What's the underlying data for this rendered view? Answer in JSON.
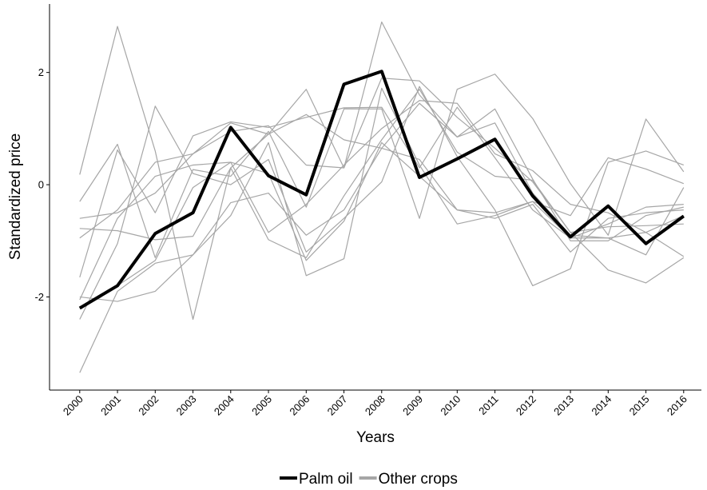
{
  "chart_data": {
    "type": "line",
    "x_label": "Years",
    "y_label": "Standardized price",
    "x": [
      2000,
      2001,
      2002,
      2003,
      2004,
      2005,
      2006,
      2007,
      2008,
      2009,
      2010,
      2011,
      2012,
      2013,
      2014,
      2015,
      2016
    ],
    "xlim": [
      1999.2,
      2016.47
    ],
    "xticks": [
      2000,
      2001,
      2002,
      2003,
      2004,
      2005,
      2006,
      2007,
      2008,
      2009,
      2010,
      2011,
      2012,
      2013,
      2014,
      2015,
      2016
    ],
    "ylim": [
      -3.66,
      3.22
    ],
    "yticks": [
      -2,
      0,
      2
    ],
    "legend": "bottom",
    "series": [
      {
        "name": "Palm oil",
        "color": "#000000",
        "values": [
          -2.2,
          -1.8,
          -0.87,
          -0.5,
          1.02,
          0.16,
          -0.18,
          1.79,
          2.02,
          0.13,
          0.46,
          0.81,
          -0.2,
          -0.93,
          -0.38,
          -1.05,
          -0.56
        ]
      },
      {
        "name": "Other crops",
        "color": "#a6a6a6",
        "values": [
          [
            0.18,
            2.82,
            0.6,
            -2.4,
            0.3,
            0.9,
            1.7,
            0.3,
            2.9,
            1.6,
            0.85,
            1.1,
            -0.15,
            -0.9,
            -0.95,
            -0.85,
            -0.55
          ],
          [
            -0.3,
            0.72,
            -1.3,
            0.27,
            0.15,
            0.95,
            -0.4,
            1.35,
            1.35,
            -0.6,
            1.7,
            1.97,
            1.18,
            0.02,
            -0.9,
            1.17,
            0.23
          ],
          [
            -3.35,
            -1.9,
            -1.4,
            -1.25,
            -0.55,
            0.75,
            -1.62,
            -1.32,
            1.72,
            0.35,
            -0.7,
            -0.55,
            -0.3,
            -0.55,
            0.48,
            0.28,
            0.02
          ],
          [
            -2.4,
            -1.05,
            1.4,
            0.2,
            0.0,
            0.45,
            -1.2,
            -0.6,
            0.05,
            1.75,
            0.5,
            -0.45,
            -1.8,
            -1.5,
            0.4,
            0.6,
            0.35
          ],
          [
            -0.6,
            -0.5,
            -0.15,
            0.55,
            1.1,
            0.9,
            1.25,
            0.8,
            0.65,
            0.45,
            -0.45,
            -0.6,
            -0.35,
            -1.2,
            -0.6,
            -0.5,
            -0.45
          ],
          [
            -0.95,
            -0.45,
            0.4,
            0.55,
            0.95,
            1.05,
            0.35,
            0.3,
            1.9,
            1.85,
            1.2,
            0.65,
            0.05,
            -0.85,
            -1.52,
            -1.75,
            -1.3
          ],
          [
            -1.65,
            0.62,
            -0.5,
            0.87,
            1.12,
            1.02,
            1.2,
            1.37,
            1.38,
            0.3,
            1.38,
            0.48,
            -0.45,
            -0.95,
            -0.95,
            -1.25,
            -0.05
          ],
          [
            -2.0,
            -2.08,
            -1.9,
            -1.25,
            -0.32,
            -0.15,
            -0.9,
            -0.45,
            0.65,
            1.45,
            0.85,
            1.35,
            0.1,
            -1.0,
            -1.0,
            -0.55,
            -0.4
          ],
          [
            -0.78,
            -0.82,
            -0.98,
            -0.92,
            0.3,
            -0.98,
            -1.3,
            -0.2,
            0.8,
            1.7,
            0.58,
            0.15,
            0.08,
            -0.85,
            -0.75,
            -0.73,
            -0.7
          ],
          [
            -2.2,
            -1.8,
            -1.35,
            -0.05,
            0.4,
            0.2,
            -1.35,
            -0.65,
            0.75,
            0.15,
            -0.45,
            -0.5,
            -0.3,
            -0.95,
            -0.7,
            -0.4,
            -0.35
          ],
          [
            -2.05,
            -0.6,
            0.15,
            0.35,
            0.4,
            -0.85,
            -0.35,
            0.35,
            1.0,
            1.5,
            1.45,
            0.55,
            0.25,
            -0.35,
            -0.5,
            -0.85,
            -1.28
          ]
        ]
      }
    ]
  }
}
